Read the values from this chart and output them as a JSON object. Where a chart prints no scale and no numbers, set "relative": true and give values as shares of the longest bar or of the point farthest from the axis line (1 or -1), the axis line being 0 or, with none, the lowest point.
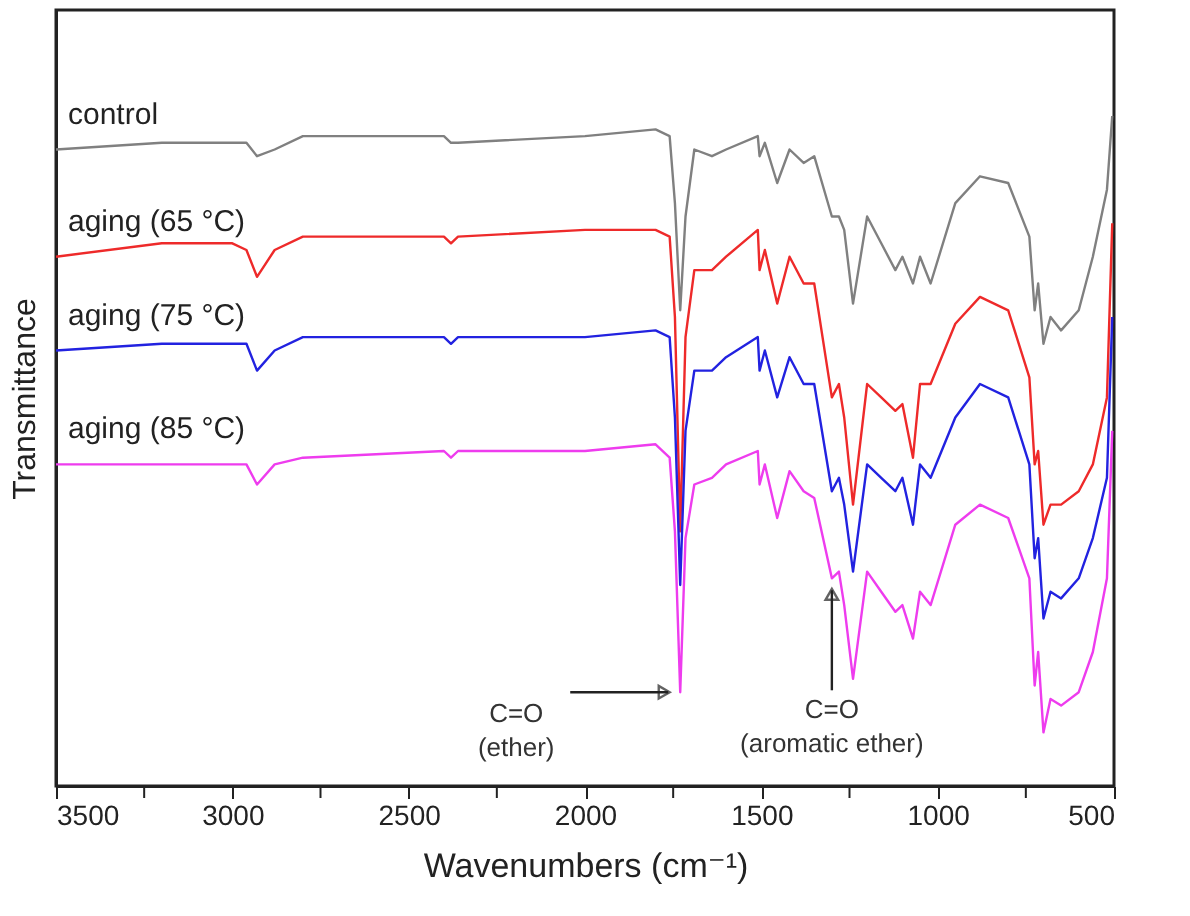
{
  "chart_data": {
    "type": "line",
    "relative": true,
    "xlabel": "Wavenumbers (cm⁻¹)",
    "ylabel": "Transmittance",
    "legend": false,
    "grid": false,
    "x": [
      3500,
      3200,
      3000,
      2960,
      2930,
      2880,
      2800,
      2400,
      2380,
      2360,
      2000,
      1800,
      1760,
      1745,
      1730,
      1715,
      1690,
      1640,
      1600,
      1510,
      1505,
      1490,
      1455,
      1420,
      1380,
      1350,
      1300,
      1280,
      1265,
      1240,
      1200,
      1160,
      1120,
      1100,
      1070,
      1050,
      1020,
      950,
      880,
      800,
      740,
      725,
      715,
      700,
      680,
      650,
      600,
      560,
      520,
      505
    ],
    "xlim": [
      3500,
      500
    ],
    "xticks": [
      3500,
      {
        "value": 3250,
        "label": null
      },
      3000,
      {
        "value": 2750,
        "label": null
      },
      2500,
      {
        "value": 2250,
        "label": null
      },
      2000,
      {
        "value": 1750,
        "label": null
      },
      1500,
      {
        "value": 1250,
        "label": null
      },
      1000,
      {
        "value": 750,
        "label": null
      },
      500
    ],
    "series": [
      {
        "name": "control",
        "color": "#808080",
        "values": [
          0.95,
          0.96,
          0.96,
          0.96,
          0.94,
          0.95,
          0.97,
          0.97,
          0.96,
          0.96,
          0.97,
          0.98,
          0.97,
          0.87,
          0.71,
          0.85,
          0.95,
          0.94,
          0.95,
          0.97,
          0.94,
          0.96,
          0.9,
          0.95,
          0.93,
          0.94,
          0.85,
          0.85,
          0.83,
          0.72,
          0.85,
          0.81,
          0.77,
          0.79,
          0.75,
          0.79,
          0.75,
          0.87,
          0.91,
          0.9,
          0.82,
          0.71,
          0.75,
          0.66,
          0.7,
          0.68,
          0.71,
          0.79,
          0.89,
          1
        ]
      },
      {
        "name": "aging (65 °C)",
        "color": "#ee2a2a",
        "values": [
          0.79,
          0.81,
          0.81,
          0.8,
          0.76,
          0.8,
          0.82,
          0.82,
          0.81,
          0.82,
          0.83,
          0.83,
          0.82,
          0.7,
          0.38,
          0.67,
          0.77,
          0.77,
          0.79,
          0.83,
          0.77,
          0.8,
          0.72,
          0.79,
          0.75,
          0.75,
          0.58,
          0.6,
          0.55,
          0.42,
          0.6,
          0.58,
          0.56,
          0.57,
          0.49,
          0.6,
          0.6,
          0.69,
          0.73,
          0.71,
          0.61,
          0.48,
          0.5,
          0.39,
          0.42,
          0.42,
          0.44,
          0.48,
          0.58,
          0.84
        ]
      },
      {
        "name": "aging (75 °C)",
        "color": "#2222e0",
        "values": [
          0.65,
          0.66,
          0.66,
          0.66,
          0.62,
          0.65,
          0.67,
          0.67,
          0.66,
          0.67,
          0.67,
          0.68,
          0.67,
          0.55,
          0.3,
          0.53,
          0.62,
          0.62,
          0.64,
          0.67,
          0.62,
          0.65,
          0.58,
          0.64,
          0.6,
          0.6,
          0.44,
          0.46,
          0.42,
          0.32,
          0.48,
          0.46,
          0.44,
          0.46,
          0.39,
          0.48,
          0.46,
          0.55,
          0.6,
          0.58,
          0.48,
          0.34,
          0.37,
          0.25,
          0.29,
          0.28,
          0.31,
          0.37,
          0.46,
          0.7
        ]
      },
      {
        "name": "aging (85 °C)",
        "color": "#ee3cee",
        "values": [
          0.48,
          0.48,
          0.48,
          0.48,
          0.45,
          0.48,
          0.49,
          0.5,
          0.49,
          0.5,
          0.5,
          0.51,
          0.49,
          0.38,
          0.14,
          0.37,
          0.45,
          0.46,
          0.48,
          0.5,
          0.45,
          0.48,
          0.4,
          0.47,
          0.44,
          0.43,
          0.31,
          0.32,
          0.27,
          0.16,
          0.32,
          0.29,
          0.26,
          0.27,
          0.22,
          0.29,
          0.27,
          0.39,
          0.42,
          0.4,
          0.31,
          0.15,
          0.2,
          0.08,
          0.13,
          0.12,
          0.14,
          0.2,
          0.31,
          0.53
        ]
      }
    ],
    "annotations": [
      {
        "text": "C=O\n(ether)",
        "x": 1730,
        "y": 0.14
      },
      {
        "text": "C=O\n(aromatic ether)",
        "x": 1300,
        "y": 0.31
      }
    ]
  }
}
